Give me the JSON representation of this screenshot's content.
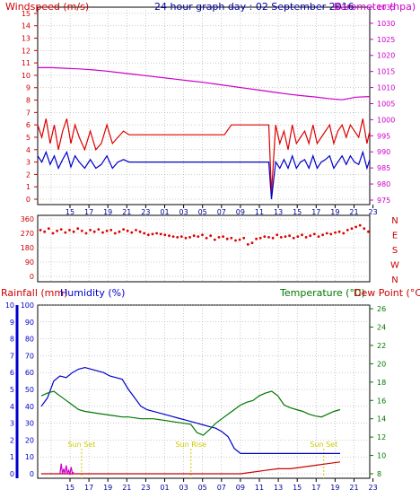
{
  "chart_data": [
    {
      "type": "line",
      "title": "24 hour graph day : 02 September 2016",
      "ylabel_left": "Windspeed (m/s)",
      "ylabel_right": "Barometer (hpa)",
      "x_ticks": [
        "15",
        "17",
        "19",
        "21",
        "23",
        "01",
        "03",
        "05",
        "07",
        "09",
        "11",
        "13",
        "15",
        "17",
        "19",
        "21",
        "23"
      ],
      "y_ticks_left": [
        "0",
        "1",
        "2",
        "3",
        "4",
        "5",
        "6",
        "7",
        "8",
        "9",
        "10",
        "11",
        "12",
        "13",
        "14",
        "15"
      ],
      "y_ticks_right": [
        "975",
        "980",
        "985",
        "990",
        "995",
        "1000",
        "1005",
        "1010",
        "1015",
        "1020",
        "1025",
        "1030",
        "1035"
      ],
      "ylim_left": [
        0,
        15.5
      ],
      "ylim_right": [
        973.6,
        1035
      ],
      "grid": true,
      "series": [
        {
          "axis": "right",
          "color": "#cc00cc",
          "x": [
            0,
            1,
            2,
            3,
            4,
            5,
            6,
            7,
            8,
            9,
            10,
            11,
            12,
            13,
            14,
            15,
            16,
            17,
            18,
            19,
            20,
            21,
            22,
            23,
            24
          ],
          "values": [
            1016.2,
            1016.2,
            1016.0,
            1015.8,
            1015.5,
            1015.1,
            1014.6,
            1014.1,
            1013.6,
            1013.1,
            1012.6,
            1012.1,
            1011.6,
            1011.0,
            1010.4,
            1009.8,
            1009.2,
            1008.6,
            1008.0,
            1007.5,
            1007.1,
            1006.6,
            1006.2,
            1007.0,
            1007.2
          ]
        },
        {
          "axis": "left",
          "color": "#dd0000",
          "x": [
            0,
            0.3,
            0.6,
            0.9,
            1.2,
            1.5,
            1.8,
            2.1,
            2.4,
            2.7,
            3.0,
            3.4,
            3.8,
            4.2,
            4.6,
            5.0,
            5.4,
            5.8,
            6.2,
            6.6,
            7.0,
            7.5,
            8.0,
            8.5,
            9.0,
            9.5,
            10.0,
            10.5,
            11.0,
            11.5,
            12.0,
            12.5,
            13.0,
            13.5,
            14.0,
            14.5,
            15.0,
            15.5,
            16.0,
            16.5,
            16.7,
            16.9,
            17.2,
            17.5,
            17.8,
            18.1,
            18.4,
            18.7,
            19.0,
            19.3,
            19.6,
            19.9,
            20.2,
            20.5,
            20.8,
            21.1,
            21.4,
            21.7,
            22.0,
            22.3,
            22.6,
            22.9,
            23.2,
            23.5,
            23.8,
            24.0
          ],
          "values": [
            6.0,
            5.0,
            6.5,
            4.5,
            6.0,
            4.0,
            5.5,
            6.5,
            4.5,
            6.0,
            5.0,
            4.0,
            5.5,
            4.0,
            4.5,
            6.0,
            4.5,
            5.0,
            5.5,
            5.2,
            5.2,
            5.2,
            5.2,
            5.2,
            5.2,
            5.2,
            5.2,
            5.2,
            5.2,
            5.2,
            5.2,
            5.2,
            5.2,
            5.2,
            6.0,
            6.0,
            6.0,
            6.0,
            6.0,
            6.0,
            6.0,
            0.5,
            6.0,
            4.5,
            5.5,
            4.0,
            6.0,
            4.5,
            5.0,
            5.5,
            4.5,
            6.0,
            4.5,
            5.0,
            5.5,
            6.0,
            4.5,
            5.5,
            6.0,
            5.0,
            6.0,
            5.5,
            5.0,
            6.5,
            4.5,
            5.5
          ]
        },
        {
          "axis": "left",
          "color": "#0000cc",
          "x": [
            0,
            0.3,
            0.6,
            0.9,
            1.2,
            1.5,
            1.8,
            2.1,
            2.4,
            2.7,
            3.0,
            3.4,
            3.8,
            4.2,
            4.6,
            5.0,
            5.4,
            5.8,
            6.2,
            6.6,
            7.0,
            7.5,
            8.0,
            8.5,
            9.0,
            9.5,
            10.0,
            10.5,
            11.0,
            11.5,
            12.0,
            12.5,
            13.0,
            13.5,
            14.0,
            14.5,
            15.0,
            15.5,
            16.0,
            16.5,
            16.7,
            16.9,
            17.2,
            17.5,
            17.8,
            18.1,
            18.4,
            18.7,
            19.0,
            19.3,
            19.6,
            19.9,
            20.2,
            20.5,
            20.8,
            21.1,
            21.4,
            21.7,
            22.0,
            22.3,
            22.6,
            22.9,
            23.2,
            23.5,
            23.8,
            24.0
          ],
          "values": [
            3.5,
            3.0,
            3.8,
            2.8,
            3.5,
            2.5,
            3.2,
            3.8,
            2.6,
            3.5,
            3.0,
            2.5,
            3.2,
            2.5,
            2.8,
            3.5,
            2.5,
            3.0,
            3.2,
            3.0,
            3.0,
            3.0,
            3.0,
            3.0,
            3.0,
            3.0,
            3.0,
            3.0,
            3.0,
            3.0,
            3.0,
            3.0,
            3.0,
            3.0,
            3.0,
            3.0,
            3.0,
            3.0,
            3.0,
            3.0,
            3.0,
            0,
            3.0,
            2.5,
            3.2,
            2.5,
            3.5,
            2.5,
            3.0,
            3.2,
            2.5,
            3.5,
            2.5,
            3.0,
            3.2,
            3.5,
            2.5,
            3.0,
            3.5,
            2.8,
            3.5,
            3.0,
            2.8,
            3.8,
            2.5,
            3.2
          ]
        }
      ]
    },
    {
      "type": "scatter",
      "x_ticks": [],
      "y_ticks_left": [
        "0",
        "90",
        "180",
        "270",
        "360"
      ],
      "y_ticks_right": [
        "N",
        "W",
        "S",
        "E",
        "N"
      ],
      "ylim": [
        0,
        360
      ],
      "grid": true,
      "series": [
        {
          "color": "#dd0000",
          "x": [
            0.2,
            0.5,
            0.8,
            1.1,
            1.4,
            1.7,
            2.0,
            2.3,
            2.6,
            2.9,
            3.2,
            3.5,
            3.8,
            4.1,
            4.4,
            4.7,
            5.0,
            5.3,
            5.6,
            5.9,
            6.2,
            6.5,
            6.8,
            7.1,
            7.4,
            7.7,
            8.0,
            8.3,
            8.6,
            8.9,
            9.2,
            9.5,
            9.8,
            10.1,
            10.4,
            10.7,
            11.0,
            11.3,
            11.6,
            11.9,
            12.2,
            12.5,
            12.8,
            13.1,
            13.4,
            13.7,
            14.0,
            14.3,
            14.6,
            14.9,
            15.2,
            15.5,
            15.8,
            16.1,
            16.4,
            16.7,
            17.0,
            17.3,
            17.6,
            17.9,
            18.2,
            18.5,
            18.8,
            19.1,
            19.4,
            19.7,
            20.0,
            20.3,
            20.6,
            20.9,
            21.2,
            21.5,
            21.8,
            22.1,
            22.4,
            22.7,
            23.0,
            23.3,
            23.6,
            23.9
          ],
          "values": [
            290,
            280,
            300,
            270,
            285,
            295,
            275,
            290,
            280,
            300,
            285,
            270,
            290,
            280,
            295,
            275,
            285,
            290,
            270,
            280,
            295,
            285,
            275,
            290,
            280,
            270,
            260,
            265,
            270,
            265,
            260,
            255,
            250,
            245,
            250,
            240,
            245,
            255,
            250,
            260,
            240,
            255,
            230,
            245,
            250,
            235,
            240,
            225,
            230,
            240,
            200,
            210,
            235,
            240,
            250,
            245,
            240,
            260,
            245,
            250,
            255,
            240,
            250,
            260,
            245,
            255,
            265,
            250,
            260,
            270,
            265,
            275,
            280,
            270,
            290,
            300,
            310,
            320,
            300,
            280
          ]
        }
      ]
    },
    {
      "type": "line",
      "ylabel_left_1": "Rainfall (mm)",
      "ylabel_left_2": "Humidity (%)",
      "ylabel_right_1": "Temperature (°C)",
      "ylabel_right_2": "Dew Point (°C)",
      "x_ticks": [
        "15",
        "17",
        "19",
        "21",
        "23",
        "01",
        "03",
        "05",
        "07",
        "09",
        "11",
        "13",
        "15",
        "17",
        "19",
        "21",
        "23"
      ],
      "y_ticks_left_1": [
        "0",
        "1",
        "2",
        "3",
        "4",
        "5",
        "6",
        "7",
        "8",
        "9",
        "10"
      ],
      "y_ticks_left_2": [
        "0",
        "10",
        "20",
        "30",
        "40",
        "50",
        "60",
        "70",
        "80",
        "90",
        "100"
      ],
      "y_ticks_right": [
        "8",
        "10",
        "12",
        "14",
        "16",
        "18",
        "20",
        "22",
        "24",
        "26"
      ],
      "ylim_left": [
        0,
        100
      ],
      "ylim_right": [
        8,
        26.4
      ],
      "grid": true,
      "annotations": [
        {
          "text": "Sun Set",
          "x": 4.3
        },
        {
          "text": "Sun Rise",
          "x": 15.0
        },
        {
          "text": "Sun Set",
          "x": 28.0
        }
      ],
      "series": [
        {
          "axis": "left",
          "color": "#0000cc",
          "x": [
            0,
            0.5,
            1,
            1.5,
            2,
            2.5,
            3,
            3.5,
            4,
            4.5,
            5,
            5.5,
            6,
            6.5,
            7,
            7.5,
            8,
            8.5,
            9,
            9.5,
            10,
            10.5,
            11,
            11.5,
            12,
            12.5,
            13,
            13.5,
            14,
            14.5,
            15,
            15.5,
            16,
            16.5,
            17,
            17.5,
            18,
            18.5,
            19,
            19.5,
            20,
            20.5,
            21,
            21.5,
            22,
            22.5,
            23,
            23.5,
            24
          ],
          "values": [
            40,
            45,
            55,
            58,
            57,
            60,
            62,
            63,
            62,
            61,
            60,
            58,
            57,
            56,
            50,
            45,
            40,
            38,
            37,
            36,
            35,
            34,
            33,
            32,
            31,
            30,
            29,
            28,
            27,
            25,
            22,
            15,
            12,
            12,
            12,
            12,
            12,
            12,
            12,
            12,
            12,
            12,
            12,
            12,
            12,
            12,
            12,
            12,
            12
          ]
        },
        {
          "axis": "right",
          "color": "#007700",
          "x": [
            0,
            0.5,
            1,
            1.5,
            2,
            2.5,
            3,
            3.5,
            4,
            4.5,
            5,
            5.5,
            6,
            6.5,
            7,
            7.5,
            8,
            8.5,
            9,
            9.5,
            10,
            10.5,
            11,
            11.5,
            12,
            12.5,
            13,
            13.5,
            14,
            14.5,
            15,
            15.5,
            16,
            16.5,
            17,
            17.5,
            18,
            18.5,
            19,
            19.5,
            20,
            20.5,
            21,
            21.5,
            22,
            22.5,
            23,
            23.5,
            24
          ],
          "values": [
            16.5,
            16.8,
            17.0,
            16.5,
            16.0,
            15.5,
            15.0,
            14.8,
            14.7,
            14.6,
            14.5,
            14.4,
            14.3,
            14.2,
            14.2,
            14.1,
            14.0,
            14.0,
            14.0,
            13.9,
            13.8,
            13.7,
            13.6,
            13.5,
            13.4,
            12.5,
            12.2,
            12.8,
            13.5,
            14.0,
            14.5,
            15.0,
            15.5,
            15.8,
            16.0,
            16.5,
            16.8,
            17.0,
            16.5,
            15.5,
            15.2,
            15.0,
            14.8,
            14.5,
            14.3,
            14.2,
            14.5,
            14.8,
            15.0
          ]
        },
        {
          "axis": "left",
          "color": "#cc0000",
          "x": [
            0,
            2,
            4,
            6,
            8,
            10,
            12,
            14,
            15,
            16,
            17,
            18,
            19,
            20,
            21,
            22,
            23,
            24
          ],
          "values": [
            0,
            0,
            0,
            0,
            0,
            0,
            0,
            0,
            0,
            0,
            0.1,
            0.2,
            0.3,
            0.3,
            0.4,
            0.5,
            0.6,
            0.7
          ]
        },
        {
          "axis": "left",
          "color": "#cc00cc",
          "x": [
            1.5,
            1.6,
            1.7,
            1.8,
            1.9,
            2.0,
            2.1,
            2.2,
            2.3,
            2.4,
            2.5,
            2.6
          ],
          "values": [
            0,
            0.6,
            0,
            0.3,
            0,
            0.5,
            0,
            0.2,
            0,
            0.4,
            0,
            0.1
          ]
        }
      ]
    }
  ]
}
